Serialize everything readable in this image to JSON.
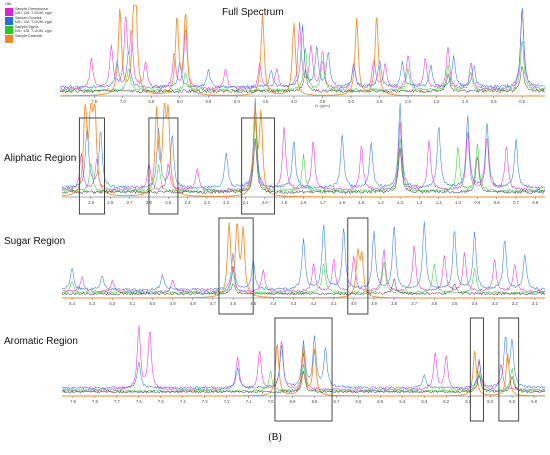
{
  "caption": "(B)",
  "legend": {
    "header": "HBL",
    "entries": [
      {
        "line1": "Sample:Greenhouse",
        "line2": "NS= 128, T=2UM, zgpr",
        "color": "#e020d0"
      },
      {
        "line1": "Sample:Growtek",
        "line2": "NS= 128, T=2UM, zgpr",
        "color": "#1f6fe0"
      },
      {
        "line1": "Sample:Sigma",
        "line2": "NS= 128, T=2UM, zgpr",
        "color": "#22cc22"
      },
      {
        "line1": "Sample:Catechin",
        "line2": "",
        "color": "#f08a1c"
      }
    ]
  },
  "colors": {
    "greenhouse": "#e020d0",
    "growtek": "#1f6fe0",
    "sigma": "#22cc22",
    "catechin": "#f08a1c",
    "reference": "#444444",
    "box": "#333333"
  },
  "chart_data": [
    {
      "type": "line",
      "title": "Full Spectrum",
      "xlabel": "f1 (ppm)",
      "xlim": [
        8.1,
        -0.4
      ],
      "x_reversed": true,
      "xticks": [
        7.5,
        7.0,
        6.5,
        6.0,
        5.5,
        5.0,
        4.5,
        4.0,
        3.5,
        3.0,
        2.5,
        2.0,
        1.5,
        1.0,
        0.5,
        0.0
      ],
      "series_order": [
        "greenhouse",
        "growtek",
        "sigma",
        "catechin",
        "reference"
      ],
      "peaks": {
        "greenhouse": [
          [
            7.55,
            0.35
          ],
          [
            7.2,
            0.5
          ],
          [
            6.95,
            0.8
          ],
          [
            6.85,
            0.6
          ],
          [
            6.6,
            0.3
          ],
          [
            6.1,
            0.4
          ],
          [
            5.9,
            0.7
          ],
          [
            5.2,
            0.25
          ],
          [
            4.6,
            0.3
          ],
          [
            4.3,
            0.25
          ],
          [
            3.9,
            0.75
          ],
          [
            3.7,
            0.5
          ],
          [
            3.5,
            0.45
          ],
          [
            2.95,
            0.3
          ],
          [
            2.6,
            0.35
          ],
          [
            2.4,
            0.3
          ],
          [
            2.0,
            0.4
          ],
          [
            1.7,
            0.35
          ],
          [
            1.3,
            0.5
          ],
          [
            0.9,
            0.3
          ],
          [
            0.0,
            0.95
          ]
        ],
        "growtek": [
          [
            7.1,
            0.3
          ],
          [
            6.9,
            0.4
          ],
          [
            6.0,
            0.3
          ],
          [
            5.5,
            0.2
          ],
          [
            4.4,
            0.2
          ],
          [
            3.85,
            0.7
          ],
          [
            3.6,
            0.45
          ],
          [
            3.4,
            0.4
          ],
          [
            2.95,
            0.25
          ],
          [
            2.5,
            0.3
          ],
          [
            2.1,
            0.3
          ],
          [
            1.6,
            0.25
          ],
          [
            1.2,
            0.35
          ],
          [
            0.85,
            0.25
          ],
          [
            0.0,
            0.95
          ]
        ],
        "sigma": [
          [
            6.9,
            0.25
          ],
          [
            5.9,
            0.2
          ],
          [
            3.8,
            0.5
          ],
          [
            3.5,
            0.35
          ],
          [
            2.0,
            0.25
          ],
          [
            1.3,
            0.3
          ],
          [
            0.9,
            0.2
          ],
          [
            0.0,
            0.6
          ]
        ],
        "catechin": [
          [
            7.05,
            1.0
          ],
          [
            6.8,
            0.9
          ],
          [
            6.78,
            0.95
          ],
          [
            6.05,
            0.9
          ],
          [
            5.9,
            0.95
          ],
          [
            4.55,
            0.95
          ],
          [
            4.0,
            0.85
          ],
          [
            2.9,
            0.9
          ],
          [
            2.55,
            0.95
          ]
        ],
        "reference": [
          [
            3.8,
            0.25
          ],
          [
            1.3,
            0.2
          ],
          [
            0.0,
            0.3
          ]
        ]
      },
      "boxes": []
    },
    {
      "type": "line",
      "title": "Aliphatic Region",
      "xlabel": "",
      "xlim": [
        3.05,
        0.55
      ],
      "x_reversed": true,
      "xticks": [
        2.9,
        2.8,
        2.7,
        2.6,
        2.5,
        2.4,
        2.3,
        2.2,
        2.1,
        2.0,
        1.9,
        1.8,
        1.7,
        1.6,
        1.5,
        1.4,
        1.3,
        1.2,
        1.1,
        1.0,
        0.9,
        0.8,
        0.7,
        0.6
      ],
      "series_order": [
        "greenhouse",
        "growtek",
        "sigma",
        "catechin",
        "reference"
      ],
      "peaks": {
        "greenhouse": [
          [
            2.95,
            0.4
          ],
          [
            2.87,
            0.35
          ],
          [
            2.6,
            0.3
          ],
          [
            2.5,
            0.3
          ],
          [
            2.35,
            0.25
          ],
          [
            2.05,
            0.95
          ],
          [
            1.9,
            0.7
          ],
          [
            1.75,
            0.55
          ],
          [
            1.5,
            0.5
          ],
          [
            1.3,
            0.75
          ],
          [
            1.15,
            0.55
          ],
          [
            0.95,
            0.65
          ],
          [
            0.85,
            0.6
          ],
          [
            0.75,
            0.5
          ]
        ],
        "growtek": [
          [
            2.92,
            0.7
          ],
          [
            2.85,
            0.65
          ],
          [
            2.55,
            0.65
          ],
          [
            2.48,
            0.6
          ],
          [
            2.2,
            0.4
          ],
          [
            2.05,
            1.0
          ],
          [
            1.85,
            0.55
          ],
          [
            1.6,
            0.6
          ],
          [
            1.45,
            0.5
          ],
          [
            1.3,
            0.95
          ],
          [
            1.1,
            0.7
          ],
          [
            0.95,
            0.8
          ],
          [
            0.85,
            0.75
          ],
          [
            0.7,
            0.55
          ]
        ],
        "sigma": [
          [
            2.9,
            0.3
          ],
          [
            2.55,
            0.3
          ],
          [
            2.05,
            0.8
          ],
          [
            1.8,
            0.4
          ],
          [
            1.3,
            0.6
          ],
          [
            1.0,
            0.5
          ],
          [
            0.9,
            0.55
          ]
        ],
        "catechin": [
          [
            2.93,
            1.0
          ],
          [
            2.9,
            0.95
          ],
          [
            2.88,
            0.9
          ],
          [
            2.56,
            0.95
          ],
          [
            2.52,
            0.9
          ],
          [
            2.5,
            0.85
          ],
          [
            2.05,
            0.95
          ],
          [
            2.02,
            0.9
          ]
        ],
        "reference": [
          [
            2.05,
            0.6
          ],
          [
            1.3,
            0.5
          ],
          [
            0.9,
            0.4
          ]
        ]
      },
      "boxes": [
        [
          2.96,
          2.83
        ],
        [
          2.6,
          2.45
        ],
        [
          2.12,
          1.95
        ]
      ]
    },
    {
      "type": "line",
      "title": "Sugar Region",
      "xlabel": "",
      "xlim": [
        5.45,
        3.05
      ],
      "x_reversed": true,
      "xticks": [
        5.4,
        5.3,
        5.2,
        5.1,
        5.0,
        4.9,
        4.8,
        4.7,
        4.6,
        4.5,
        4.4,
        4.3,
        4.2,
        4.1,
        4.0,
        3.9,
        3.8,
        3.7,
        3.6,
        3.5,
        3.4,
        3.3,
        3.2,
        3.1
      ],
      "series_order": [
        "greenhouse",
        "growtek",
        "sigma",
        "catechin",
        "reference"
      ],
      "peaks": {
        "greenhouse": [
          [
            5.35,
            0.2
          ],
          [
            5.2,
            0.15
          ],
          [
            4.9,
            0.15
          ],
          [
            4.6,
            0.35
          ],
          [
            4.45,
            0.3
          ],
          [
            4.2,
            0.4
          ],
          [
            4.1,
            0.45
          ],
          [
            4.0,
            0.5
          ],
          [
            3.85,
            0.6
          ],
          [
            3.7,
            0.65
          ],
          [
            3.55,
            0.5
          ],
          [
            3.45,
            0.55
          ],
          [
            3.3,
            0.45
          ],
          [
            3.2,
            0.4
          ]
        ],
        "growtek": [
          [
            5.4,
            0.3
          ],
          [
            5.25,
            0.2
          ],
          [
            4.95,
            0.2
          ],
          [
            4.6,
            0.5
          ],
          [
            4.5,
            0.4
          ],
          [
            4.25,
            0.7
          ],
          [
            4.15,
            0.9
          ],
          [
            4.05,
            0.85
          ],
          [
            3.9,
            0.8
          ],
          [
            3.8,
            0.9
          ],
          [
            3.65,
            0.95
          ],
          [
            3.5,
            0.85
          ],
          [
            3.4,
            0.8
          ],
          [
            3.25,
            0.7
          ],
          [
            3.15,
            0.5
          ]
        ],
        "sigma": [
          [
            5.4,
            0.15
          ],
          [
            4.6,
            0.3
          ],
          [
            4.15,
            0.4
          ],
          [
            3.85,
            0.45
          ],
          [
            3.6,
            0.4
          ],
          [
            3.4,
            0.35
          ]
        ],
        "catechin": [
          [
            4.62,
            1.0
          ],
          [
            4.58,
            0.95
          ],
          [
            4.55,
            0.9
          ],
          [
            3.98,
            0.6
          ],
          [
            3.96,
            0.55
          ]
        ],
        "reference": [
          [
            4.6,
            0.15
          ],
          [
            3.8,
            0.2
          ],
          [
            3.5,
            0.15
          ]
        ]
      },
      "boxes": [
        [
          4.67,
          4.5
        ],
        [
          4.03,
          3.93
        ]
      ]
    },
    {
      "type": "line",
      "title": "Aromatic Region",
      "xlabel": "",
      "xlim": [
        7.95,
        5.75
      ],
      "x_reversed": true,
      "xticks": [
        7.9,
        7.8,
        7.7,
        7.6,
        7.5,
        7.4,
        7.3,
        7.2,
        7.1,
        7.0,
        6.9,
        6.8,
        6.7,
        6.6,
        6.5,
        6.4,
        6.3,
        6.2,
        6.1,
        6.0,
        5.9,
        5.8
      ],
      "series_order": [
        "greenhouse",
        "growtek",
        "sigma",
        "catechin",
        "reference"
      ],
      "peaks": {
        "greenhouse": [
          [
            7.6,
            0.95
          ],
          [
            7.55,
            0.9
          ],
          [
            7.15,
            0.5
          ],
          [
            7.05,
            0.6
          ],
          [
            6.95,
            0.75
          ],
          [
            6.85,
            0.55
          ],
          [
            6.25,
            0.55
          ],
          [
            6.2,
            0.5
          ],
          [
            6.05,
            0.45
          ],
          [
            5.95,
            0.4
          ]
        ],
        "growtek": [
          [
            7.6,
            0.4
          ],
          [
            7.15,
            0.3
          ],
          [
            6.95,
            0.65
          ],
          [
            6.85,
            0.7
          ],
          [
            6.8,
            0.75
          ],
          [
            6.75,
            0.6
          ],
          [
            6.3,
            0.2
          ],
          [
            6.05,
            0.4
          ],
          [
            5.93,
            0.75
          ],
          [
            5.9,
            0.7
          ]
        ],
        "sigma": [
          [
            7.0,
            0.3
          ],
          [
            6.85,
            0.4
          ],
          [
            6.05,
            0.3
          ],
          [
            5.9,
            0.35
          ]
        ],
        "catechin": [
          [
            6.97,
            0.8
          ],
          [
            6.85,
            0.75
          ],
          [
            6.8,
            0.7
          ],
          [
            6.07,
            0.7
          ],
          [
            5.92,
            0.65
          ]
        ],
        "reference": [
          [
            6.85,
            0.3
          ],
          [
            6.05,
            0.25
          ],
          [
            5.9,
            0.25
          ]
        ]
      },
      "boxes": [
        [
          6.98,
          6.72
        ],
        [
          6.09,
          6.03
        ],
        [
          5.96,
          5.87
        ]
      ]
    }
  ]
}
